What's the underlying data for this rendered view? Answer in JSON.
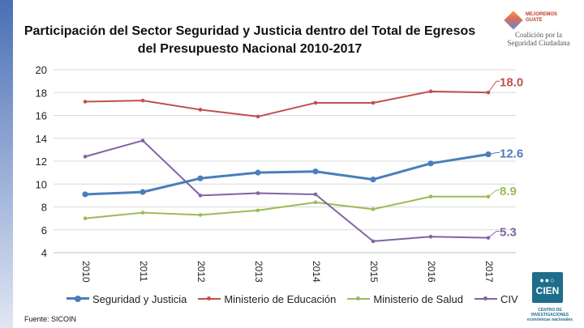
{
  "header": {
    "title_line1": "Participación del Sector Seguridad y Justicia dentro del Total de Egresos",
    "title_line2": "del Presupuesto Nacional 2010-2017"
  },
  "logos": {
    "mejoremos": "MEJOREMOS\nGUATE",
    "coalicion": "Coalición por la\nSeguridad Ciudadana",
    "cien_mark": "CIEN",
    "cien_sub": "CENTRO DE INVESTIGACIONES\neconómicas nacionales"
  },
  "footer": {
    "source": "Fuente: SICOIN"
  },
  "chart_data": {
    "type": "line",
    "title": "Participación del Sector Seguridad y Justicia dentro del Total de Egresos del Presupuesto Nacional 2010-2017",
    "x": [
      "2010",
      "2011",
      "2012",
      "2013",
      "2014",
      "2015",
      "2016",
      "2017"
    ],
    "ylim": [
      4,
      20
    ],
    "yticks": [
      4,
      6,
      8,
      10,
      12,
      14,
      16,
      18,
      20
    ],
    "grid": true,
    "legend_position": "bottom",
    "series": [
      {
        "name": "Seguridad y Justicia",
        "color": "#4a7ebb",
        "values": [
          9.1,
          9.3,
          10.5,
          11.0,
          11.1,
          10.4,
          11.8,
          12.6
        ],
        "end_label": "12.6",
        "emphasis": true
      },
      {
        "name": "Ministerio de Educación",
        "color": "#c0504d",
        "values": [
          17.2,
          17.3,
          16.5,
          15.9,
          17.1,
          17.1,
          18.1,
          18.0
        ],
        "end_label": "18.0"
      },
      {
        "name": "Ministerio de Salud",
        "color": "#9bbb59",
        "values": [
          7.0,
          7.5,
          7.3,
          7.7,
          8.4,
          7.8,
          8.9,
          8.9
        ],
        "end_label": "8.9"
      },
      {
        "name": "CIV",
        "color": "#8064a2",
        "values": [
          12.4,
          13.8,
          9.0,
          9.2,
          9.1,
          5.0,
          5.4,
          5.3
        ],
        "end_label": "5.3"
      }
    ]
  }
}
